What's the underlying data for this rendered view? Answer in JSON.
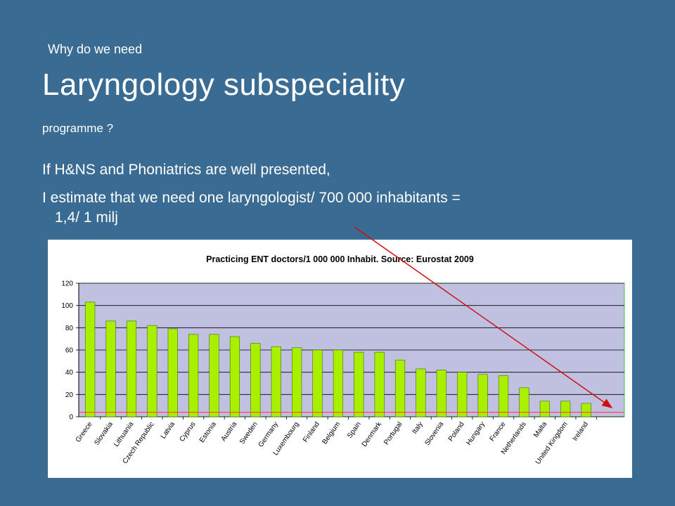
{
  "slide": {
    "pre_title": "Why do we need",
    "title": "Laryngology subspeciality",
    "post_title": "programme ?",
    "body_line1": "If H&NS and Phoniatrics are well presented,",
    "body_line2a": "I estimate that we need one laryngologist/ 700 000 inhabitants =",
    "body_line2b": "1,4/ 1 milj"
  },
  "colors": {
    "background": "#3a6c93",
    "plot_area": "#c0c0e0",
    "bar": "#a8f000",
    "bar_edge": "#4a6a00",
    "reference_line": "#ff4040",
    "arrow": "#d01010"
  },
  "chart_data": {
    "type": "bar",
    "title": "Practicing ENT doctors/1 000 000 Inhabit. Source: Eurostat 2009",
    "categories": [
      "Greece",
      "Slovakia",
      "Lithuania",
      "Czech Republic",
      "Latvia",
      "Cyprus",
      "Estonia",
      "Austria",
      "Sweden",
      "Germany",
      "Luxembourg",
      "Finland",
      "Belgium",
      "Spain",
      "Denmark",
      "Portugal",
      "Italy",
      "Slovenia",
      "Poland",
      "Hungary",
      "France",
      "Netherlands",
      "Malta",
      "United Kingdom",
      "Ireland"
    ],
    "values": [
      103,
      86,
      86,
      82,
      79,
      74,
      74,
      72,
      66,
      63,
      62,
      60,
      60,
      58,
      58,
      51,
      43,
      42,
      40,
      38,
      37,
      26,
      14,
      14,
      12
    ],
    "ylim": [
      0,
      120
    ],
    "yticks": [
      0,
      20,
      40,
      60,
      80,
      100,
      120
    ],
    "reference_value": 4,
    "grid": true,
    "legend": false
  }
}
